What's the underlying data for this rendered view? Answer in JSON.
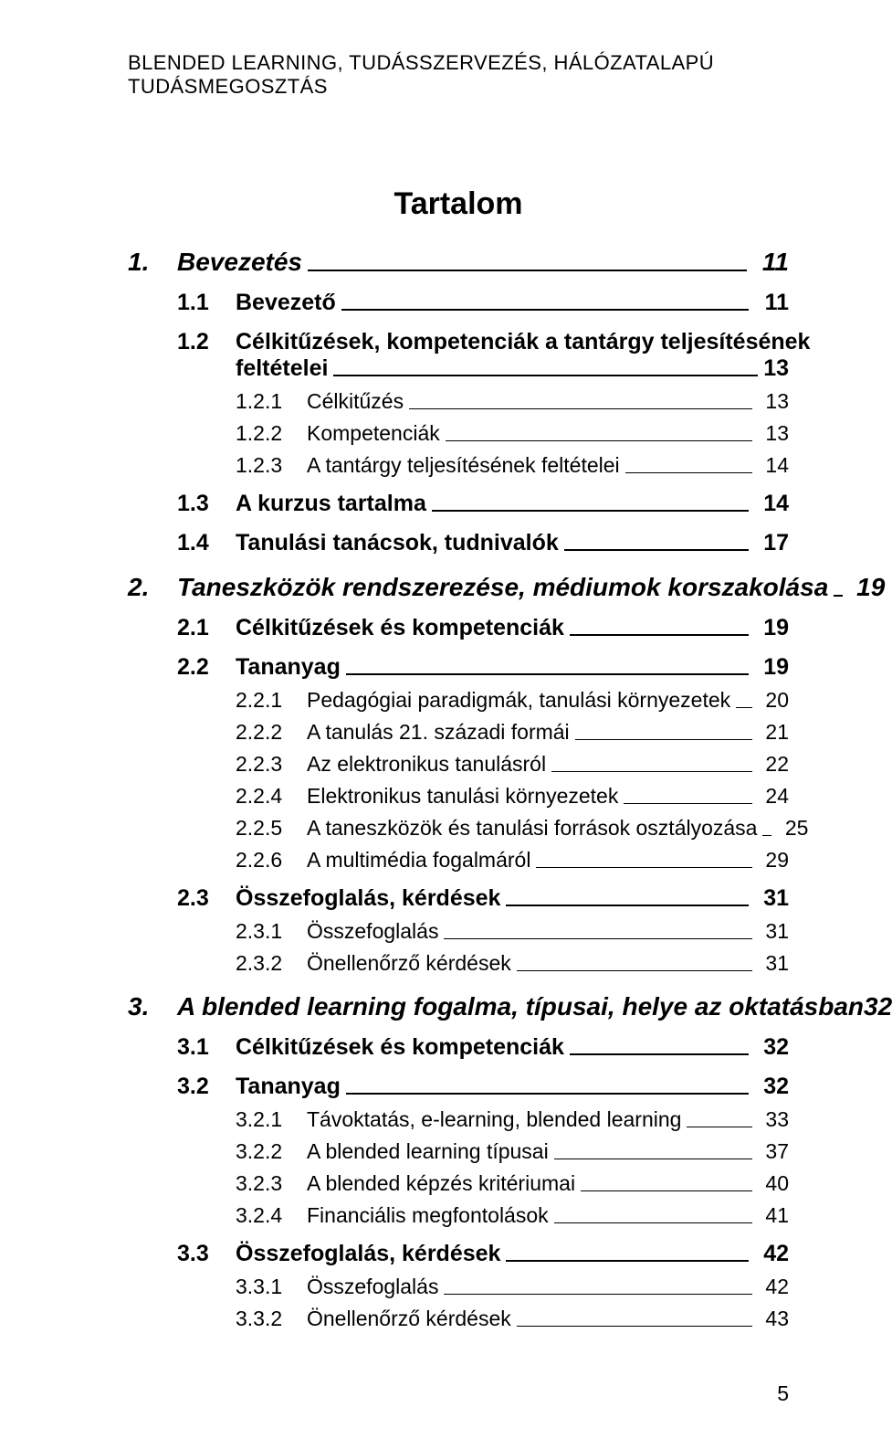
{
  "running_head": "BLENDED LEARNING, TUDÁSSZERVEZÉS, HÁLÓZATALAPÚ TUDÁSMEGOSZTÁS",
  "toc_title": "Tartalom",
  "page_number": "5",
  "toc": {
    "ch1": {
      "num": "1.",
      "label": "Bevezetés",
      "page": "11",
      "s11": {
        "num": "1.1",
        "label": "Bevezető",
        "page": "11"
      },
      "s12": {
        "num": "1.2",
        "label_top": "Célkitűzések, kompetenciák a tantárgy teljesítésének",
        "label_bot": "feltételei",
        "page": "13",
        "ss121": {
          "num": "1.2.1",
          "label": "Célkitűzés",
          "page": "13"
        },
        "ss122": {
          "num": "1.2.2",
          "label": "Kompetenciák",
          "page": "13"
        },
        "ss123": {
          "num": "1.2.3",
          "label": "A tantárgy teljesítésének feltételei",
          "page": "14"
        }
      },
      "s13": {
        "num": "1.3",
        "label": "A kurzus tartalma",
        "page": "14"
      },
      "s14": {
        "num": "1.4",
        "label": "Tanulási tanácsok, tudnivalók",
        "page": "17"
      }
    },
    "ch2": {
      "num": "2.",
      "label": "Taneszközök rendszerezése, médiumok korszakolása",
      "page": "19",
      "s21": {
        "num": "2.1",
        "label": "Célkitűzések és kompetenciák",
        "page": "19"
      },
      "s22": {
        "num": "2.2",
        "label": "Tananyag",
        "page": "19",
        "ss221": {
          "num": "2.2.1",
          "label": "Pedagógiai paradigmák, tanulási környezetek",
          "page": "20"
        },
        "ss222": {
          "num": "2.2.2",
          "label": "A tanulás 21. századi formái",
          "page": "21"
        },
        "ss223": {
          "num": "2.2.3",
          "label": "Az elektronikus tanulásról",
          "page": "22"
        },
        "ss224": {
          "num": "2.2.4",
          "label": "Elektronikus tanulási környezetek",
          "page": "24"
        },
        "ss225": {
          "num": "2.2.5",
          "label": "A taneszközök és tanulási források osztályozása",
          "page": "25"
        },
        "ss226": {
          "num": "2.2.6",
          "label": "A multimédia fogalmáról",
          "page": "29"
        }
      },
      "s23": {
        "num": "2.3",
        "label": "Összefoglalás, kérdések",
        "page": "31",
        "ss231": {
          "num": "2.3.1",
          "label": "Összefoglalás",
          "page": "31"
        },
        "ss232": {
          "num": "2.3.2",
          "label": "Önellenőrző kérdések",
          "page": "31"
        }
      }
    },
    "ch3": {
      "num": "3.",
      "label": "A blended learning fogalma, típusai, helye az oktatásban",
      "page": "32",
      "s31": {
        "num": "3.1",
        "label": "Célkitűzések és kompetenciák",
        "page": "32"
      },
      "s32": {
        "num": "3.2",
        "label": "Tananyag",
        "page": "32",
        "ss321": {
          "num": "3.2.1",
          "label": "Távoktatás, e-learning, blended learning",
          "page": "33"
        },
        "ss322": {
          "num": "3.2.2",
          "label": "A blended learning típusai",
          "page": "37"
        },
        "ss323": {
          "num": "3.2.3",
          "label": "A blended képzés kritériumai",
          "page": "40"
        },
        "ss324": {
          "num": "3.2.4",
          "label": "Financiális megfontolások",
          "page": "41"
        }
      },
      "s33": {
        "num": "3.3",
        "label": "Összefoglalás, kérdések",
        "page": "42",
        "ss331": {
          "num": "3.3.1",
          "label": "Összefoglalás",
          "page": "42"
        },
        "ss332": {
          "num": "3.3.2",
          "label": "Önellenőrző kérdések",
          "page": "43"
        }
      }
    }
  }
}
